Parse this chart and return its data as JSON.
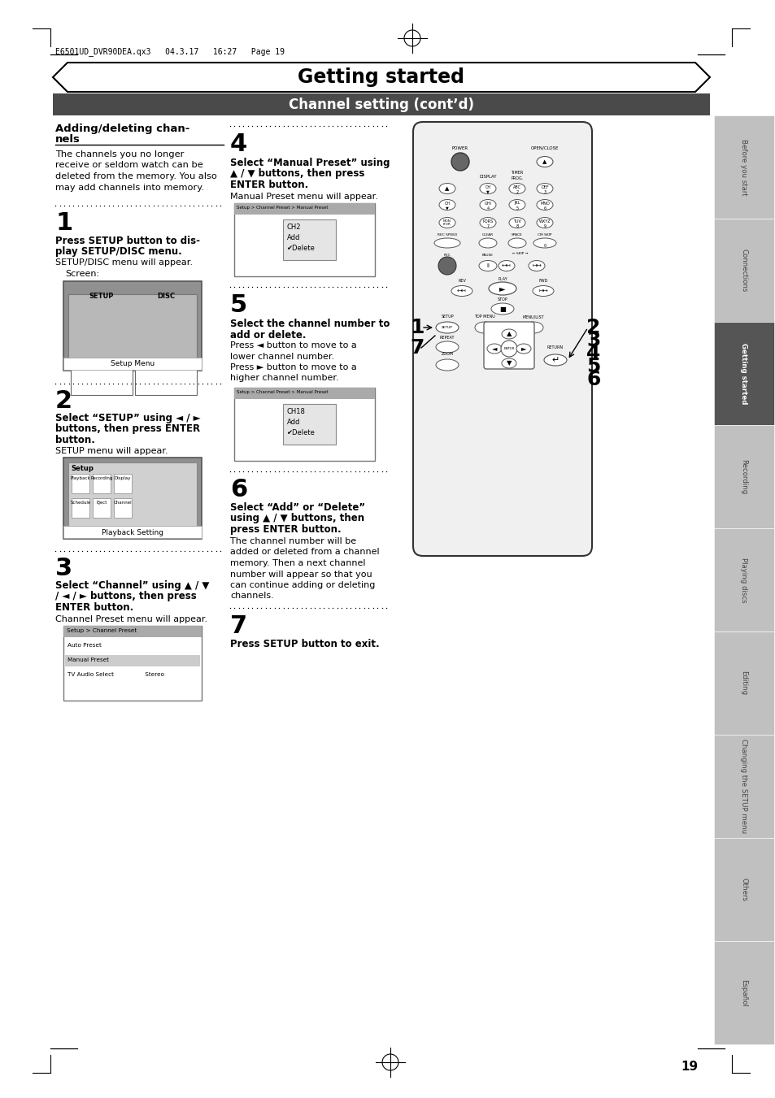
{
  "bg_color": "#ffffff",
  "header_text": "E6501UD_DVR90DEA.qx3   04.3.17   16:27   Page 19",
  "title_text": "Getting started",
  "subtitle_text": "Channel setting (cont’d)",
  "section_left_title1": "Adding/deleting chan-",
  "section_left_title2": "nels",
  "section_left_body": [
    "The channels you no longer",
    "receive or seldom watch can be",
    "deleted from the memory. You also",
    "may add channels into memory."
  ],
  "step1_num": "1",
  "step1_bold": [
    "Press SETUP button to dis-",
    "play SETUP/DISC menu."
  ],
  "step1_normal": "SETUP/DISC menu will appear.",
  "step1_screen": "Screen:",
  "step2_num": "2",
  "step2_bold": [
    "Select “SETUP” using ◄ / ►",
    "buttons, then press ENTER",
    "button."
  ],
  "step2_normal": "SETUP menu will appear.",
  "step3_num": "3",
  "step3_bold": [
    "Select “Channel” using ▲ / ▼",
    "/ ◄ / ► buttons, then press",
    "ENTER button."
  ],
  "step3_normal": "Channel Preset menu will appear.",
  "step4_num": "4",
  "step4_bold": [
    "Select “Manual Preset” using",
    "▲ / ▼ buttons, then press",
    "ENTER button."
  ],
  "step4_normal": "Manual Preset menu will appear.",
  "step5_num": "5",
  "step5_bold": [
    "Select the channel number to",
    "add or delete."
  ],
  "step5_normal": [
    "Press ◄ button to move to a",
    "lower channel number.",
    "Press ► button to move to a",
    "higher channel number."
  ],
  "step6_num": "6",
  "step6_bold": [
    "Select “Add” or “Delete”",
    "using ▲ / ▼ buttons, then",
    "press ENTER button."
  ],
  "step6_normal": [
    "The channel number will be",
    "added or deleted from a channel",
    "memory. Then a next channel",
    "number will appear so that you",
    "can continue adding or deleting",
    "channels."
  ],
  "step7_num": "7",
  "step7_bold": "Press SETUP button to exit.",
  "sidebar_labels": [
    "Before you start",
    "Connections",
    "Getting started",
    "Recording",
    "Playing discs",
    "Editing",
    "Changing the SETUP menu",
    "Others",
    "Español"
  ],
  "sidebar_active": "Getting started",
  "page_num": "19",
  "subtitle_bg": "#4a4a4a",
  "subtitle_text_color": "#ffffff",
  "sidebar_active_bg": "#555555",
  "sidebar_inactive_bg": "#c0c0c0",
  "screen_border": "#888888",
  "screen_title_bg": "#aaaaaa",
  "screen_row_highlight": "#bbbbbb",
  "remote_body_color": "#e8e8e8",
  "remote_border": "#333333"
}
